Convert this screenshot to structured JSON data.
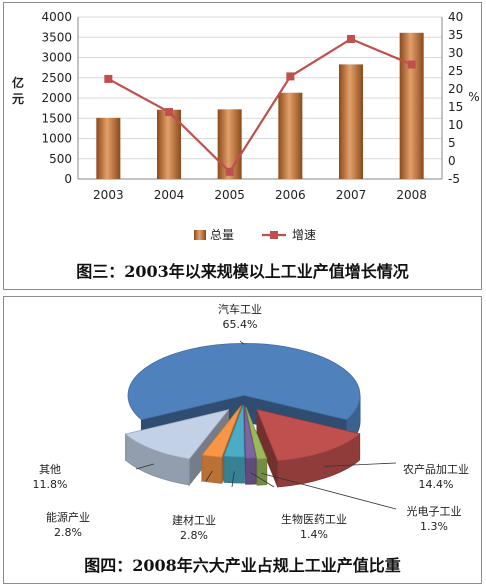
{
  "chart_data": [
    {
      "type": "bar+line",
      "categories": [
        "2003",
        "2004",
        "2005",
        "2006",
        "2007",
        "2008"
      ],
      "series": [
        {
          "name": "总量",
          "type": "bar",
          "axis": "left",
          "values": [
            1510,
            1710,
            1720,
            2130,
            2830,
            3610
          ]
        },
        {
          "name": "增速",
          "type": "line",
          "axis": "right",
          "values": [
            22.8,
            13.6,
            -3.0,
            23.5,
            33.9,
            26.8
          ]
        }
      ],
      "ylabel_left": "亿元",
      "ylabel_right": "%",
      "ylim_left": [
        0,
        4000
      ],
      "ylim_right": [
        -5,
        40
      ],
      "yticks_left": [
        "0",
        "500",
        "1000",
        "1500",
        "2000",
        "2500",
        "3000",
        "3500",
        "4000"
      ],
      "yticks_right": [
        "-5",
        "0",
        "5",
        "10",
        "15",
        "20",
        "25",
        "30",
        "35",
        "40"
      ],
      "grid": true,
      "legend": "bottom",
      "title": "图三：2003年以来规模以上工业产值增长情况",
      "colors": {
        "bar": "#b8672a",
        "line": "#c0504d"
      }
    },
    {
      "type": "pie",
      "title": "图四：2008年六大产业占规上工业产值比重",
      "slices": [
        {
          "name": "汽车工业",
          "label": "65.4%",
          "value": 65.4,
          "color": "#4f81bd"
        },
        {
          "name": "农产品加工业",
          "label": "14.4%",
          "value": 14.4,
          "color": "#c0504d"
        },
        {
          "name": "光电子工业",
          "label": "1.3%",
          "value": 1.3,
          "color": "#9bbb59"
        },
        {
          "name": "生物医药工业",
          "label": "1.4%",
          "value": 1.4,
          "color": "#8064a2"
        },
        {
          "name": "建材工业",
          "label": "2.8%",
          "value": 2.8,
          "color": "#4bacc6"
        },
        {
          "name": "能源产业",
          "label": "2.8%",
          "value": 2.8,
          "color": "#f79646"
        },
        {
          "name": "其他",
          "label": "11.8%",
          "value": 11.8,
          "color": "#c3d1e6"
        }
      ]
    }
  ]
}
